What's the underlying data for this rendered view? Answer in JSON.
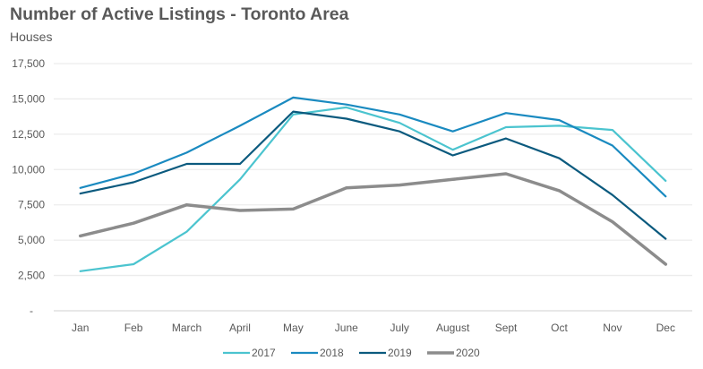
{
  "chart_data": {
    "type": "line",
    "title": "Number of Active Listings - Toronto Area",
    "subtitle": "Houses",
    "xlabel": "",
    "ylabel": "",
    "categories": [
      "Jan",
      "Feb",
      "March",
      "April",
      "May",
      "June",
      "July",
      "August",
      "Sept",
      "Oct",
      "Nov",
      "Dec"
    ],
    "ylim": [
      0,
      17500
    ],
    "yticks": [
      0,
      2500,
      5000,
      7500,
      10000,
      12500,
      15000,
      17500
    ],
    "ytick_labels": [
      "-",
      "2,500",
      "5,000",
      "7,500",
      "10,000",
      "12,500",
      "15,000",
      "17,500"
    ],
    "grid": true,
    "legend_position": "bottom",
    "series": [
      {
        "name": "2017",
        "color": "#4BC4CF",
        "values": [
          2800,
          3300,
          5600,
          9300,
          13900,
          14400,
          13300,
          11400,
          13000,
          13100,
          12800,
          9200
        ]
      },
      {
        "name": "2018",
        "color": "#1A8AC0",
        "values": [
          8700,
          9700,
          11200,
          13100,
          15100,
          14600,
          13900,
          12700,
          14000,
          13500,
          11700,
          8100
        ]
      },
      {
        "name": "2019",
        "color": "#0B5A7E",
        "values": [
          8300,
          9100,
          10400,
          10400,
          14100,
          13600,
          12700,
          11000,
          12200,
          10800,
          8200,
          5100
        ]
      },
      {
        "name": "2020",
        "color": "#8C8C8C",
        "values": [
          5300,
          6200,
          7500,
          7100,
          7200,
          8700,
          8900,
          9300,
          9700,
          8500,
          6300,
          3300
        ]
      }
    ]
  }
}
